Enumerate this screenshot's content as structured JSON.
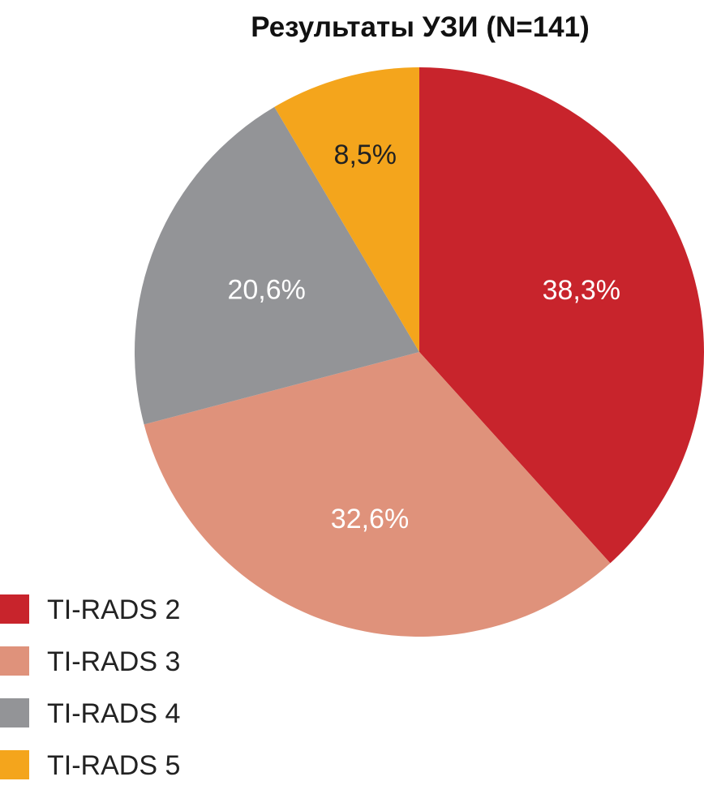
{
  "chart_data": {
    "type": "pie",
    "title": "Результаты УЗИ (N=141)",
    "slices": [
      {
        "name": "TI-RADS 2",
        "value": 38.3,
        "label": "38,3%",
        "color": "#c8242c"
      },
      {
        "name": "TI-RADS 3",
        "value": 32.6,
        "label": "32,6%",
        "color": "#df927b"
      },
      {
        "name": "TI-RADS 4",
        "value": 20.6,
        "label": "20,6%",
        "color": "#939497"
      },
      {
        "name": "TI-RADS 5",
        "value": 8.5,
        "label": "8,5%",
        "color": "#f4a51c"
      }
    ],
    "start_angle": "12 o'clock",
    "direction": "clockwise",
    "legend_position": "bottom-left"
  }
}
